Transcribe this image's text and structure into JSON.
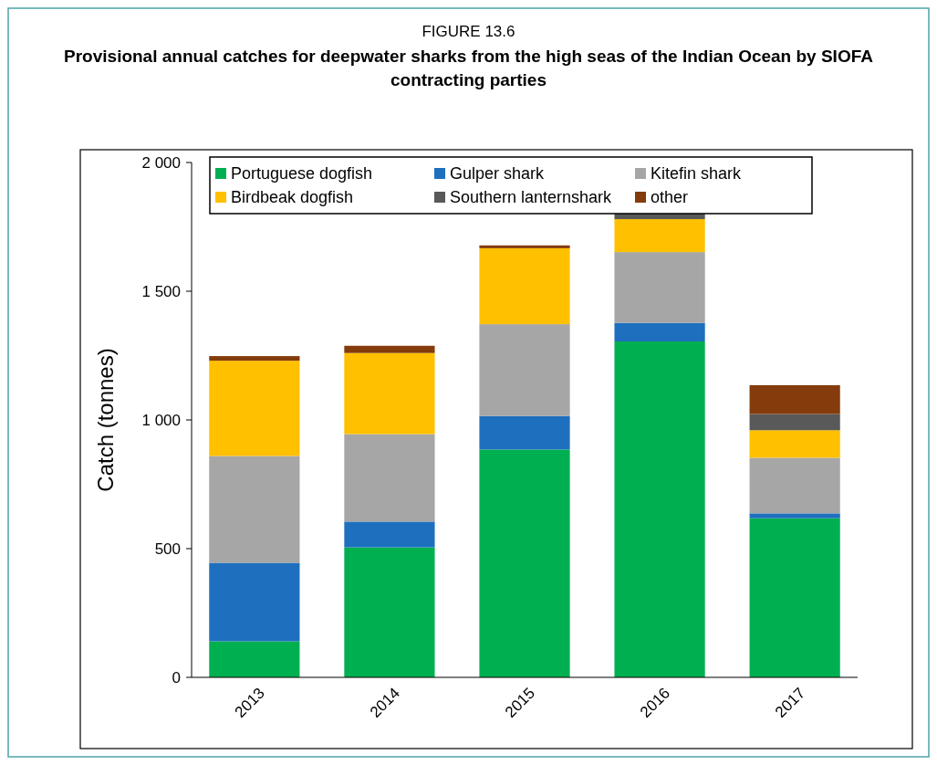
{
  "chart_data": {
    "type": "bar",
    "title": "FIGURE 13.6",
    "subtitle": "Provisional annual catches for deepwater sharks from the high seas of the Indian Ocean by SIOFA contracting parties",
    "ylabel": "Catch (tonnes)",
    "categories": [
      "2013",
      "2014",
      "2015",
      "2016",
      "2017"
    ],
    "stacked": true,
    "series": [
      {
        "name": "Portuguese dogfish",
        "color": "#00b050",
        "values": [
          140,
          505,
          885,
          1305,
          618
        ]
      },
      {
        "name": "Gulper shark",
        "color": "#1f6fbf",
        "values": [
          305,
          100,
          130,
          72,
          19
        ]
      },
      {
        "name": "Kitefin shark",
        "color": "#a6a6a6",
        "values": [
          415,
          340,
          357,
          275,
          216
        ]
      },
      {
        "name": "Birdbeak dogfish",
        "color": "#ffc000",
        "values": [
          370,
          315,
          295,
          128,
          107
        ]
      },
      {
        "name": "Southern lanternshark",
        "color": "#595959",
        "values": [
          0,
          0,
          0,
          31,
          63
        ]
      },
      {
        "name": "other",
        "color": "#843c0c",
        "values": [
          18,
          28,
          11,
          0,
          112
        ]
      }
    ],
    "ylim": [
      0,
      2000
    ],
    "yticks": [
      0,
      500,
      {
        "value": 1000,
        "label": "1 000"
      },
      {
        "value": 1500,
        "label": "1 500"
      },
      {
        "value": 2000,
        "label": "2 000"
      }
    ],
    "legend": "top",
    "grid": false
  }
}
